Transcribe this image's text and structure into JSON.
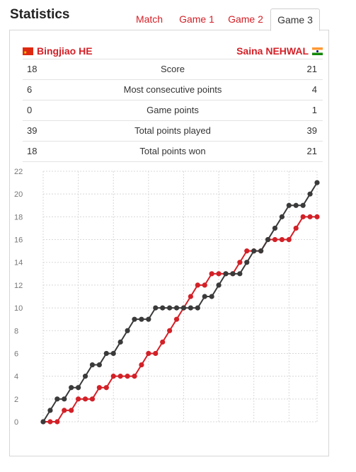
{
  "title": "Statistics",
  "tabs": [
    {
      "label": "Match",
      "active": false
    },
    {
      "label": "Game 1",
      "active": false
    },
    {
      "label": "Game 2",
      "active": false
    },
    {
      "label": "Game 3",
      "active": true
    }
  ],
  "players": {
    "left": {
      "name": "Bingjiao HE",
      "flag": "china-flag-icon"
    },
    "right": {
      "name": "Saina NEHWAL",
      "flag": "india-flag-icon"
    }
  },
  "stats": [
    {
      "left": "18",
      "label": "Score",
      "right": "21"
    },
    {
      "left": "6",
      "label": "Most consecutive points",
      "right": "4"
    },
    {
      "left": "0",
      "label": "Game points",
      "right": "1"
    },
    {
      "left": "39",
      "label": "Total points played",
      "right": "39"
    },
    {
      "left": "18",
      "label": "Total points won",
      "right": "21"
    }
  ],
  "colors": {
    "accent": "#d32027",
    "left_series": "#d32027",
    "right_series": "#3a3a3a",
    "grid": "#d8d8d8"
  },
  "chart_data": {
    "type": "line",
    "ylim": [
      0,
      22
    ],
    "yticks": [
      0,
      2,
      4,
      6,
      8,
      10,
      12,
      14,
      16,
      18,
      20,
      22
    ],
    "x": [
      0,
      1,
      2,
      3,
      4,
      5,
      6,
      7,
      8,
      9,
      10,
      11,
      12,
      13,
      14,
      15,
      16,
      17,
      18,
      19,
      20,
      21,
      22,
      23,
      24,
      25,
      26,
      27,
      28,
      29,
      30,
      31,
      32,
      33,
      34,
      35,
      36,
      37,
      38,
      39
    ],
    "grid": true,
    "series": [
      {
        "name": "Bingjiao HE",
        "color": "#d32027",
        "values": [
          0,
          0,
          0,
          1,
          1,
          2,
          2,
          2,
          3,
          3,
          4,
          4,
          4,
          4,
          5,
          6,
          6,
          7,
          8,
          9,
          10,
          11,
          12,
          12,
          13,
          13,
          13,
          13,
          14,
          15,
          15,
          15,
          16,
          16,
          16,
          16,
          17,
          18,
          18,
          18
        ]
      },
      {
        "name": "Saina NEHWAL",
        "color": "#3a3a3a",
        "values": [
          0,
          1,
          2,
          2,
          3,
          3,
          4,
          5,
          5,
          6,
          6,
          7,
          8,
          9,
          9,
          9,
          10,
          10,
          10,
          10,
          10,
          10,
          10,
          11,
          11,
          12,
          13,
          13,
          13,
          14,
          15,
          15,
          16,
          17,
          18,
          19,
          19,
          19,
          20,
          21
        ]
      }
    ]
  }
}
